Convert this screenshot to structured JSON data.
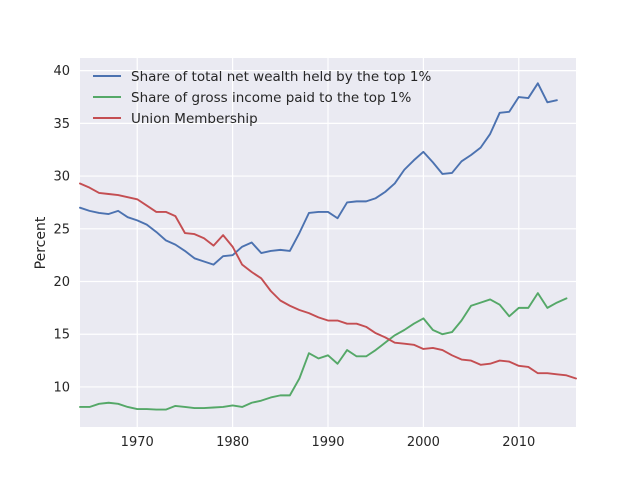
{
  "chart_data": {
    "type": "line",
    "ylabel": "Percent",
    "xlabel": "",
    "xlim": [
      1964,
      2016
    ],
    "ylim": [
      6.2,
      41.2
    ],
    "xticks": [
      1970,
      1980,
      1990,
      2000,
      2010
    ],
    "yticks": [
      10,
      15,
      20,
      25,
      30,
      35,
      40
    ],
    "grid": true,
    "legend_position": "top-left",
    "series": [
      {
        "name": "Share of total net wealth held by the top 1%",
        "color": "#4c72b0",
        "x": [
          1964,
          1965,
          1966,
          1967,
          1968,
          1969,
          1970,
          1971,
          1972,
          1973,
          1974,
          1975,
          1976,
          1977,
          1978,
          1979,
          1980,
          1981,
          1982,
          1983,
          1984,
          1985,
          1986,
          1987,
          1988,
          1989,
          1990,
          1991,
          1992,
          1993,
          1994,
          1995,
          1996,
          1997,
          1998,
          1999,
          2000,
          2001,
          2002,
          2003,
          2004,
          2005,
          2006,
          2007,
          2008,
          2009,
          2010,
          2011,
          2012,
          2013,
          2014
        ],
        "y": [
          27.0,
          26.7,
          26.5,
          26.4,
          26.7,
          26.1,
          25.8,
          25.4,
          24.7,
          23.9,
          23.5,
          22.9,
          22.2,
          21.9,
          21.6,
          22.4,
          22.5,
          23.3,
          23.7,
          22.7,
          22.9,
          23.0,
          22.9,
          24.6,
          26.5,
          26.6,
          26.6,
          26.0,
          27.5,
          27.6,
          27.6,
          27.9,
          28.5,
          29.3,
          30.6,
          31.5,
          32.3,
          31.3,
          30.2,
          30.3,
          31.4,
          32.0,
          32.7,
          34.0,
          36.0,
          36.1,
          37.5,
          37.4,
          38.8,
          37.0,
          37.2
        ]
      },
      {
        "name": "Share of gross income paid to the top 1%",
        "color": "#55a868",
        "x": [
          1964,
          1965,
          1966,
          1967,
          1968,
          1969,
          1970,
          1971,
          1972,
          1973,
          1974,
          1975,
          1976,
          1977,
          1978,
          1979,
          1980,
          1981,
          1982,
          1983,
          1984,
          1985,
          1986,
          1987,
          1988,
          1989,
          1990,
          1991,
          1992,
          1993,
          1994,
          1995,
          1996,
          1997,
          1998,
          1999,
          2000,
          2001,
          2002,
          2003,
          2004,
          2005,
          2006,
          2007,
          2008,
          2009,
          2010,
          2011,
          2012,
          2013,
          2014,
          2015
        ],
        "y": [
          8.1,
          8.1,
          8.4,
          8.5,
          8.4,
          8.1,
          7.9,
          7.9,
          7.85,
          7.85,
          8.2,
          8.1,
          8.0,
          8.0,
          8.05,
          8.1,
          8.25,
          8.1,
          8.5,
          8.7,
          9.0,
          9.2,
          9.2,
          10.8,
          13.2,
          12.7,
          13.0,
          12.2,
          13.5,
          12.9,
          12.9,
          13.5,
          14.2,
          14.9,
          15.4,
          16.0,
          16.5,
          15.4,
          15.0,
          15.2,
          16.3,
          17.7,
          18.0,
          18.3,
          17.8,
          16.7,
          17.5,
          17.5,
          18.9,
          17.5,
          18.0,
          18.4
        ]
      },
      {
        "name": "Union Membership",
        "color": "#c44e52",
        "x": [
          1964,
          1965,
          1966,
          1967,
          1968,
          1969,
          1970,
          1971,
          1972,
          1973,
          1974,
          1975,
          1976,
          1977,
          1978,
          1979,
          1980,
          1981,
          1982,
          1983,
          1984,
          1985,
          1986,
          1987,
          1988,
          1989,
          1990,
          1991,
          1992,
          1993,
          1994,
          1995,
          1996,
          1997,
          1998,
          1999,
          2000,
          2001,
          2002,
          2003,
          2004,
          2005,
          2006,
          2007,
          2008,
          2009,
          2010,
          2011,
          2012,
          2013,
          2014,
          2015,
          2016
        ],
        "y": [
          29.3,
          28.9,
          28.4,
          28.3,
          28.2,
          28.0,
          27.8,
          27.2,
          26.6,
          26.6,
          26.2,
          24.6,
          24.5,
          24.1,
          23.4,
          24.4,
          23.3,
          21.6,
          20.9,
          20.3,
          19.1,
          18.2,
          17.7,
          17.3,
          17.0,
          16.6,
          16.3,
          16.3,
          16.0,
          16.0,
          15.7,
          15.1,
          14.7,
          14.2,
          14.1,
          14.0,
          13.6,
          13.7,
          13.5,
          13.0,
          12.6,
          12.5,
          12.1,
          12.2,
          12.5,
          12.4,
          12.0,
          11.9,
          11.3,
          11.3,
          11.2,
          11.1,
          10.8
        ]
      }
    ]
  }
}
